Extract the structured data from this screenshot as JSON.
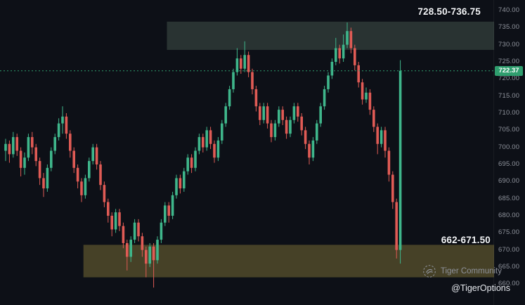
{
  "colors": {
    "background": "#0d1017",
    "up": "#3fb68b",
    "down": "#e05b55",
    "axis_text": "#8f939c",
    "price_line": "#2f9e6e",
    "price_label_bg": "#2f9e6e",
    "supply_zone_fill": "rgba(141,178,148,0.22)",
    "demand_zone_fill": "rgba(202,178,76,0.30)",
    "label_text": "#f2f4f7"
  },
  "watermark": {
    "community_label": "Tiger Community",
    "handle": "@TigerOptions"
  },
  "chart_data": {
    "type": "candlestick",
    "title": "",
    "xlabel": "",
    "ylabel": "",
    "ylim": [
      658,
      742
    ],
    "grid": false,
    "last_price": 722.37,
    "last_price_label": "722.37",
    "axis_ticks": [
      "740.00",
      "735.00",
      "730.00",
      "725.00",
      "720.00",
      "715.00",
      "710.00",
      "705.00",
      "700.00",
      "695.00",
      "690.00",
      "685.00",
      "680.00",
      "675.00",
      "670.00",
      "665.00",
      "660.00"
    ],
    "zones": [
      {
        "name": "supply",
        "label": "728.50-736.75",
        "price_from": 728.5,
        "price_to": 736.75,
        "start_index": 43
      },
      {
        "name": "demand",
        "label": "662-671.50",
        "price_from": 662.0,
        "price_to": 671.5,
        "start_index": 21
      }
    ],
    "candles": [
      [
        699,
        702.5,
        696,
        701
      ],
      [
        701,
        702,
        695.5,
        698
      ],
      [
        698,
        704.5,
        697,
        703
      ],
      [
        703,
        704,
        697.5,
        699
      ],
      [
        699,
        700,
        691.5,
        694
      ],
      [
        694,
        698.5,
        692,
        697
      ],
      [
        697,
        704,
        696,
        703
      ],
      [
        703,
        704.5,
        698,
        700
      ],
      [
        700,
        701,
        694.5,
        696
      ],
      [
        696,
        697,
        689,
        691
      ],
      [
        691,
        692.5,
        685.5,
        688
      ],
      [
        688,
        695,
        687,
        694
      ],
      [
        694,
        700,
        693,
        699
      ],
      [
        699,
        704,
        698,
        703
      ],
      [
        703,
        708.5,
        702,
        707
      ],
      [
        707,
        712,
        704,
        709
      ],
      [
        709,
        710,
        702.5,
        704
      ],
      [
        704,
        705,
        697,
        699
      ],
      [
        699,
        700,
        692.5,
        694
      ],
      [
        694,
        695,
        688,
        690
      ],
      [
        690,
        691,
        684,
        686
      ],
      [
        686,
        692,
        685,
        691
      ],
      [
        691,
        697,
        690,
        696
      ],
      [
        696,
        701,
        695,
        700
      ],
      [
        700,
        701,
        693.5,
        695
      ],
      [
        695,
        696,
        687.5,
        689
      ],
      [
        689,
        690,
        682.5,
        684
      ],
      [
        684,
        685,
        678,
        680
      ],
      [
        680,
        681,
        674,
        676
      ],
      [
        676,
        682,
        675,
        681
      ],
      [
        681,
        682,
        675.5,
        677
      ],
      [
        677,
        678,
        670.5,
        672
      ],
      [
        672,
        673,
        664,
        668
      ],
      [
        668,
        674,
        666.5,
        673
      ],
      [
        673,
        679,
        672,
        678
      ],
      [
        678,
        679,
        672.5,
        674
      ],
      [
        674,
        675,
        668,
        670
      ],
      [
        670,
        671,
        662,
        666
      ],
      [
        666,
        672,
        665,
        671
      ],
      [
        671,
        672,
        659,
        667
      ],
      [
        667,
        674,
        666,
        673
      ],
      [
        673,
        679,
        672,
        678
      ],
      [
        678,
        684,
        677,
        683
      ],
      [
        683,
        684,
        678,
        680
      ],
      [
        680,
        687,
        679,
        686
      ],
      [
        686,
        692,
        685,
        691
      ],
      [
        691,
        692,
        686.5,
        688
      ],
      [
        688,
        694,
        687,
        693
      ],
      [
        693,
        698,
        692,
        697
      ],
      [
        697,
        698,
        692.5,
        694
      ],
      [
        694,
        700,
        693,
        699
      ],
      [
        699,
        704,
        698,
        703
      ],
      [
        703,
        704,
        698.5,
        700
      ],
      [
        700,
        706,
        699,
        705
      ],
      [
        705,
        706,
        699.5,
        701
      ],
      [
        701,
        702,
        695.5,
        697
      ],
      [
        697,
        703,
        696,
        702
      ],
      [
        702,
        708,
        701,
        707
      ],
      [
        707,
        713,
        706,
        712
      ],
      [
        712,
        718,
        711,
        717
      ],
      [
        717,
        723,
        716,
        722
      ],
      [
        722,
        729,
        721,
        726
      ],
      [
        726,
        727,
        721.5,
        723
      ],
      [
        723,
        731,
        722,
        727
      ],
      [
        727,
        728,
        720.5,
        722
      ],
      [
        722,
        723,
        715.5,
        717
      ],
      [
        717,
        718,
        710.5,
        712
      ],
      [
        712,
        713,
        706.5,
        708
      ],
      [
        708,
        713,
        707,
        712
      ],
      [
        712,
        713,
        705.5,
        707
      ],
      [
        707,
        708,
        701.5,
        703
      ],
      [
        703,
        708,
        702,
        707
      ],
      [
        707,
        712,
        706,
        711
      ],
      [
        711,
        712,
        706.5,
        708
      ],
      [
        708,
        709,
        702.5,
        704
      ],
      [
        704,
        709,
        703,
        708
      ],
      [
        708,
        713,
        707,
        712
      ],
      [
        712,
        713,
        707.5,
        709
      ],
      [
        709,
        710,
        703.5,
        705
      ],
      [
        705,
        706,
        699.5,
        701
      ],
      [
        701,
        702,
        695,
        697
      ],
      [
        697,
        703,
        696,
        702
      ],
      [
        702,
        708,
        701,
        707
      ],
      [
        707,
        713,
        706,
        712
      ],
      [
        712,
        718,
        711,
        717
      ],
      [
        717,
        722,
        716,
        721
      ],
      [
        721,
        726,
        720,
        725
      ],
      [
        725,
        732,
        724,
        729
      ],
      [
        729,
        730,
        724.5,
        726
      ],
      [
        726,
        733,
        725,
        730
      ],
      [
        730,
        736.5,
        729,
        734
      ],
      [
        734,
        735,
        727.5,
        729
      ],
      [
        729,
        730,
        722.5,
        724
      ],
      [
        724,
        725,
        717.5,
        719
      ],
      [
        719,
        720,
        712.5,
        714
      ],
      [
        714,
        717.5,
        713,
        716
      ],
      [
        716,
        717,
        709.5,
        711
      ],
      [
        711,
        712,
        704.5,
        706
      ],
      [
        706,
        707,
        698,
        701
      ],
      [
        701,
        706,
        700,
        705
      ],
      [
        705,
        706,
        697,
        699
      ],
      [
        699,
        700,
        690,
        692
      ],
      [
        692,
        693,
        682,
        684
      ],
      [
        684,
        685,
        667.5,
        670
      ],
      [
        670,
        725.5,
        666,
        722.37
      ]
    ]
  }
}
